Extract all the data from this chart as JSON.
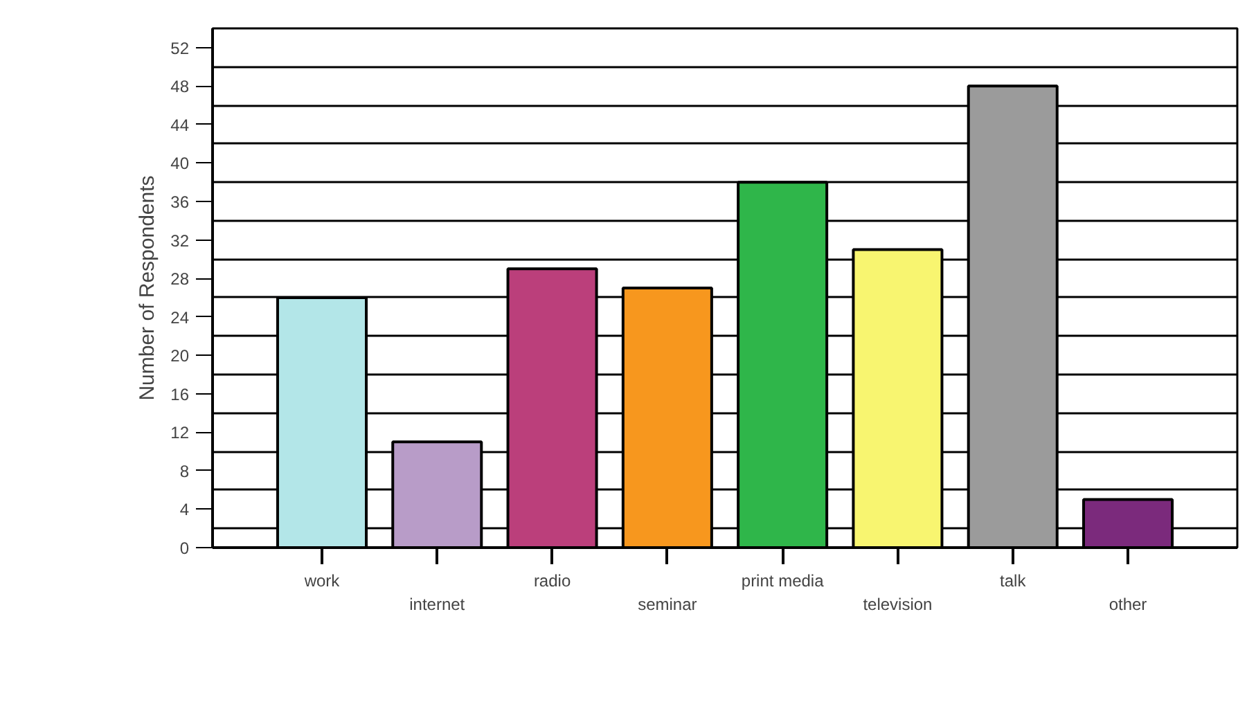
{
  "chart_data": {
    "type": "bar",
    "ylabel": "Number of Respondents",
    "categories": [
      "work",
      "internet",
      "radio",
      "seminar",
      "print media",
      "television",
      "talk",
      "other"
    ],
    "values": [
      26,
      11,
      29,
      27,
      38,
      31,
      48,
      5
    ],
    "colors": [
      "#b3e6e8",
      "#b89cc8",
      "#bb3f7b",
      "#f7971e",
      "#2fb64a",
      "#f8f570",
      "#9b9b9b",
      "#7b2a7c"
    ],
    "ylim": [
      0,
      54
    ],
    "yticks": [
      0,
      4,
      8,
      12,
      16,
      20,
      24,
      28,
      32,
      36,
      40,
      44,
      48,
      52
    ],
    "grid": "y"
  }
}
